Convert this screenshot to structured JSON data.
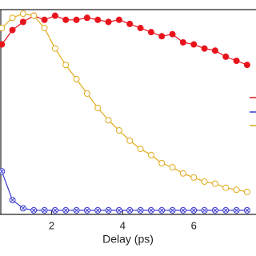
{
  "chart_data": {
    "type": "line",
    "x_label": "Delay (ps)",
    "x": [
      0.6,
      0.9,
      1.2,
      1.5,
      1.8,
      2.1,
      2.4,
      2.7,
      3.0,
      3.3,
      3.6,
      3.9,
      4.2,
      4.5,
      4.8,
      5.1,
      5.4,
      5.7,
      6.0,
      6.3,
      6.6,
      6.9,
      7.2,
      7.5
    ],
    "xlim": [
      0.55,
      7.75
    ],
    "xticks": [
      2,
      4,
      6
    ],
    "ylim": [
      0,
      1
    ],
    "series": [
      {
        "color": "#e8141c",
        "marker": "filled",
        "values": [
          0.83,
          0.9,
          0.94,
          0.97,
          0.95,
          0.97,
          0.95,
          0.95,
          0.96,
          0.95,
          0.94,
          0.95,
          0.93,
          0.91,
          0.89,
          0.87,
          0.88,
          0.84,
          0.83,
          0.81,
          0.8,
          0.77,
          0.75,
          0.73
        ]
      },
      {
        "color": "#e0aa1c",
        "marker": "open",
        "values": [
          0.91,
          0.96,
          0.98,
          0.97,
          0.91,
          0.81,
          0.73,
          0.66,
          0.59,
          0.52,
          0.46,
          0.41,
          0.36,
          0.32,
          0.29,
          0.25,
          0.23,
          0.2,
          0.18,
          0.16,
          0.15,
          0.13,
          0.12,
          0.11
        ]
      },
      {
        "color": "#3c3cd0",
        "marker": "cross",
        "values": [
          0.21,
          0.07,
          0.03,
          0.02,
          0.02,
          0.02,
          0.02,
          0.02,
          0.02,
          0.02,
          0.02,
          0.02,
          0.02,
          0.02,
          0.02,
          0.02,
          0.02,
          0.02,
          0.02,
          0.02,
          0.02,
          0.02,
          0.02,
          0.02
        ]
      }
    ]
  }
}
